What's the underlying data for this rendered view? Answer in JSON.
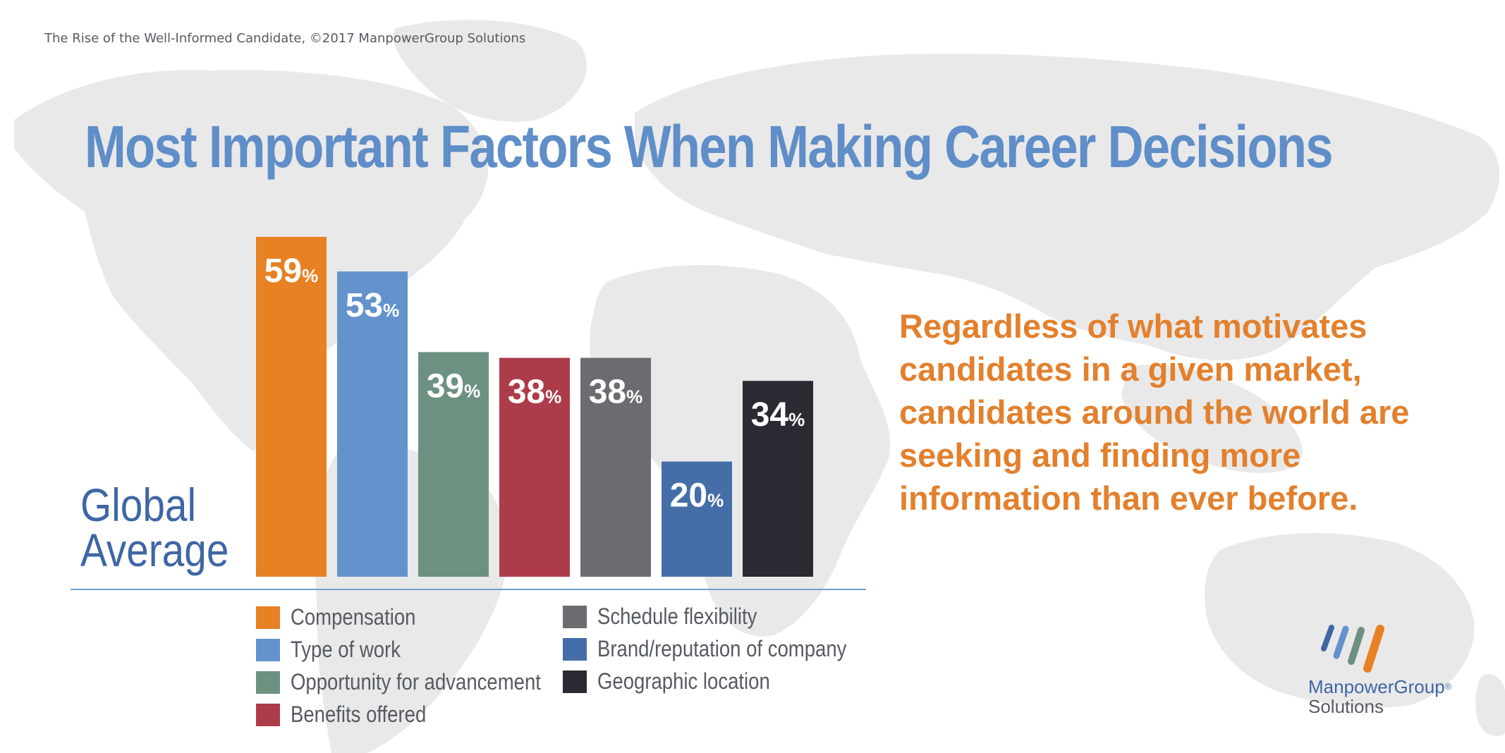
{
  "source_note": "The Rise of the Well-Informed Candidate, ©2017 ManpowerGroup Solutions",
  "colors": {
    "title": "#5f8ec8",
    "callout": "#e3802d",
    "group_label": "#3f66a5",
    "map": "#e9e9e9"
  },
  "group_label_lines": [
    "Global",
    "Average"
  ],
  "callout_text": "Regardless of what motivates candidates in a given market, candidates around the world are seeking and finding more information than ever before.",
  "logo": {
    "icon": "manpowergroup-stripes-logo-icon",
    "name": "ManpowerGroup",
    "mark": "®",
    "sub": "Solutions"
  },
  "chart_data": {
    "type": "bar",
    "title": "Most Important Factors When Making Career Decisions",
    "unit": "%",
    "categories": [
      "Compensation",
      "Type of work",
      "Opportunity for advancement",
      "Benefits offered",
      "Schedule flexibility",
      "Brand/reputation of company",
      "Geographic location"
    ],
    "series": [
      {
        "values": [
          59,
          53,
          39,
          38,
          38,
          20,
          34
        ],
        "colors": [
          "#e88123",
          "#6393cc",
          "#6d9181",
          "#ad3c4b",
          "#6b6b70",
          "#456ea8",
          "#2b2a33"
        ]
      }
    ],
    "ylim": [
      0,
      60
    ],
    "data_labels": true,
    "grid": false,
    "legend_position": "bottom"
  }
}
